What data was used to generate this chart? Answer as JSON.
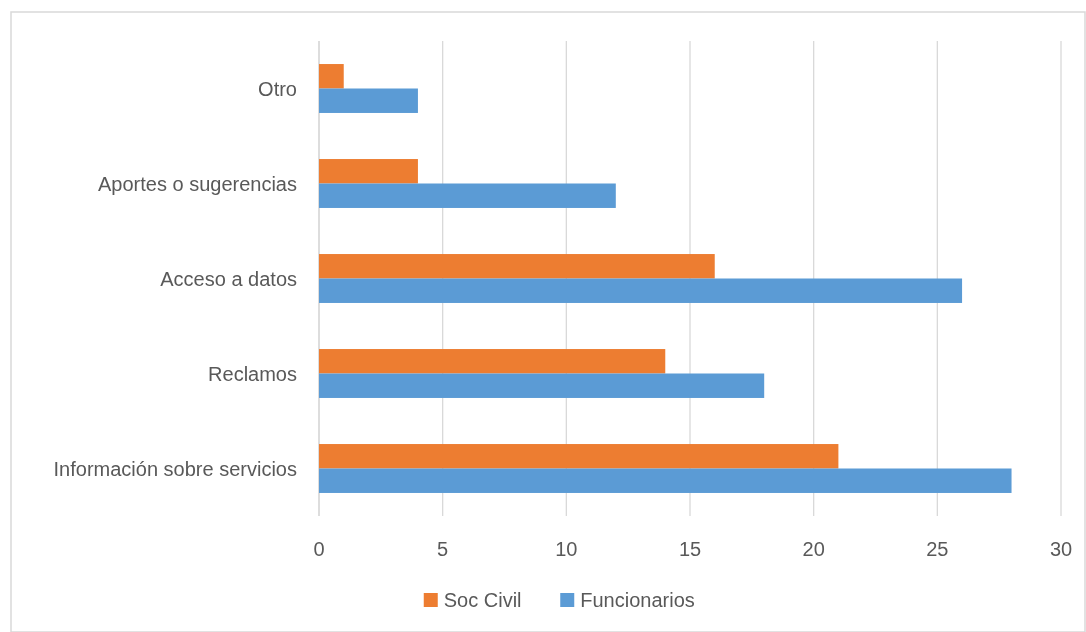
{
  "chart_data": {
    "type": "bar",
    "orientation": "horizontal",
    "categories": [
      "Otro",
      "Aportes o sugerencias",
      "Acceso a datos",
      "Reclamos",
      "Información sobre servicios"
    ],
    "series": [
      {
        "name": "Soc Civil",
        "color": "#ed7d31",
        "values": [
          1,
          4,
          16,
          14,
          21
        ]
      },
      {
        "name": "Funcionarios",
        "color": "#5b9bd5",
        "values": [
          4,
          12,
          26,
          18,
          28
        ]
      }
    ],
    "xlim": [
      0,
      30
    ],
    "xticks": [
      0,
      5,
      10,
      15,
      20,
      25,
      30
    ],
    "grid": "x",
    "legend": "bottom"
  }
}
